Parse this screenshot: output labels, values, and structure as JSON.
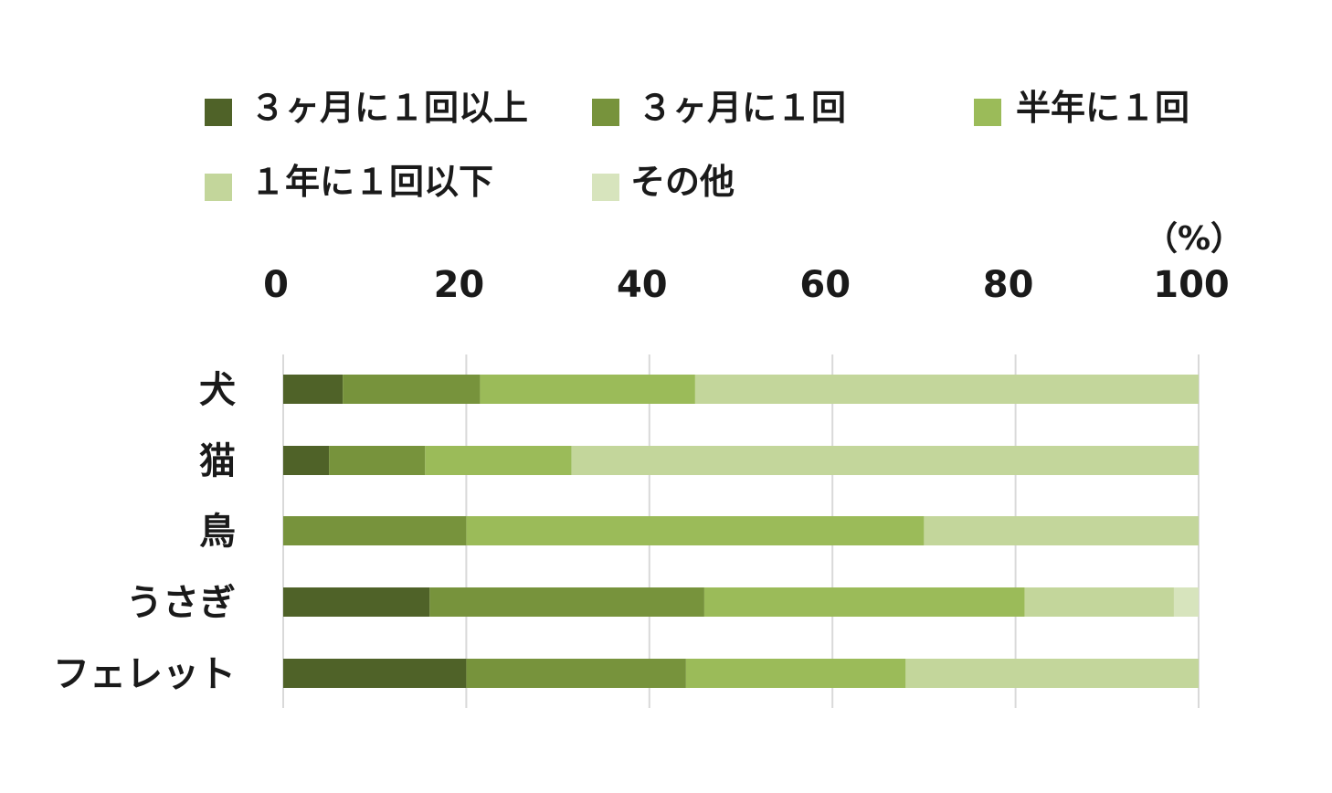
{
  "chart_data": {
    "type": "bar",
    "orientation": "horizontal",
    "stacked": true,
    "unit_label": "（%）",
    "categories": [
      "犬",
      "猫",
      "鳥",
      "うさぎ",
      "フェレット"
    ],
    "xlim": [
      0,
      100
    ],
    "xticks": [
      "0",
      "20",
      "40",
      "60",
      "80",
      "100"
    ],
    "grid": true,
    "legend_position": "top",
    "series": [
      {
        "name": "３ヶ月に１回以上",
        "color": "#4f6228",
        "values": [
          6.5,
          5,
          0,
          16,
          20
        ]
      },
      {
        "name": "３ヶ月に１回",
        "color": "#77933c",
        "values": [
          15,
          10.5,
          20,
          30,
          24
        ]
      },
      {
        "name": "半年に１回",
        "color": "#9bbb59",
        "values": [
          23.5,
          16,
          50,
          35,
          24
        ]
      },
      {
        "name": "１年に１回以下",
        "color": "#c3d69b",
        "values": [
          55,
          68.5,
          30,
          16.3,
          32
        ]
      },
      {
        "name": "その他",
        "color": "#d7e4bd",
        "values": [
          0,
          0,
          0,
          2.7,
          0
        ]
      }
    ]
  }
}
